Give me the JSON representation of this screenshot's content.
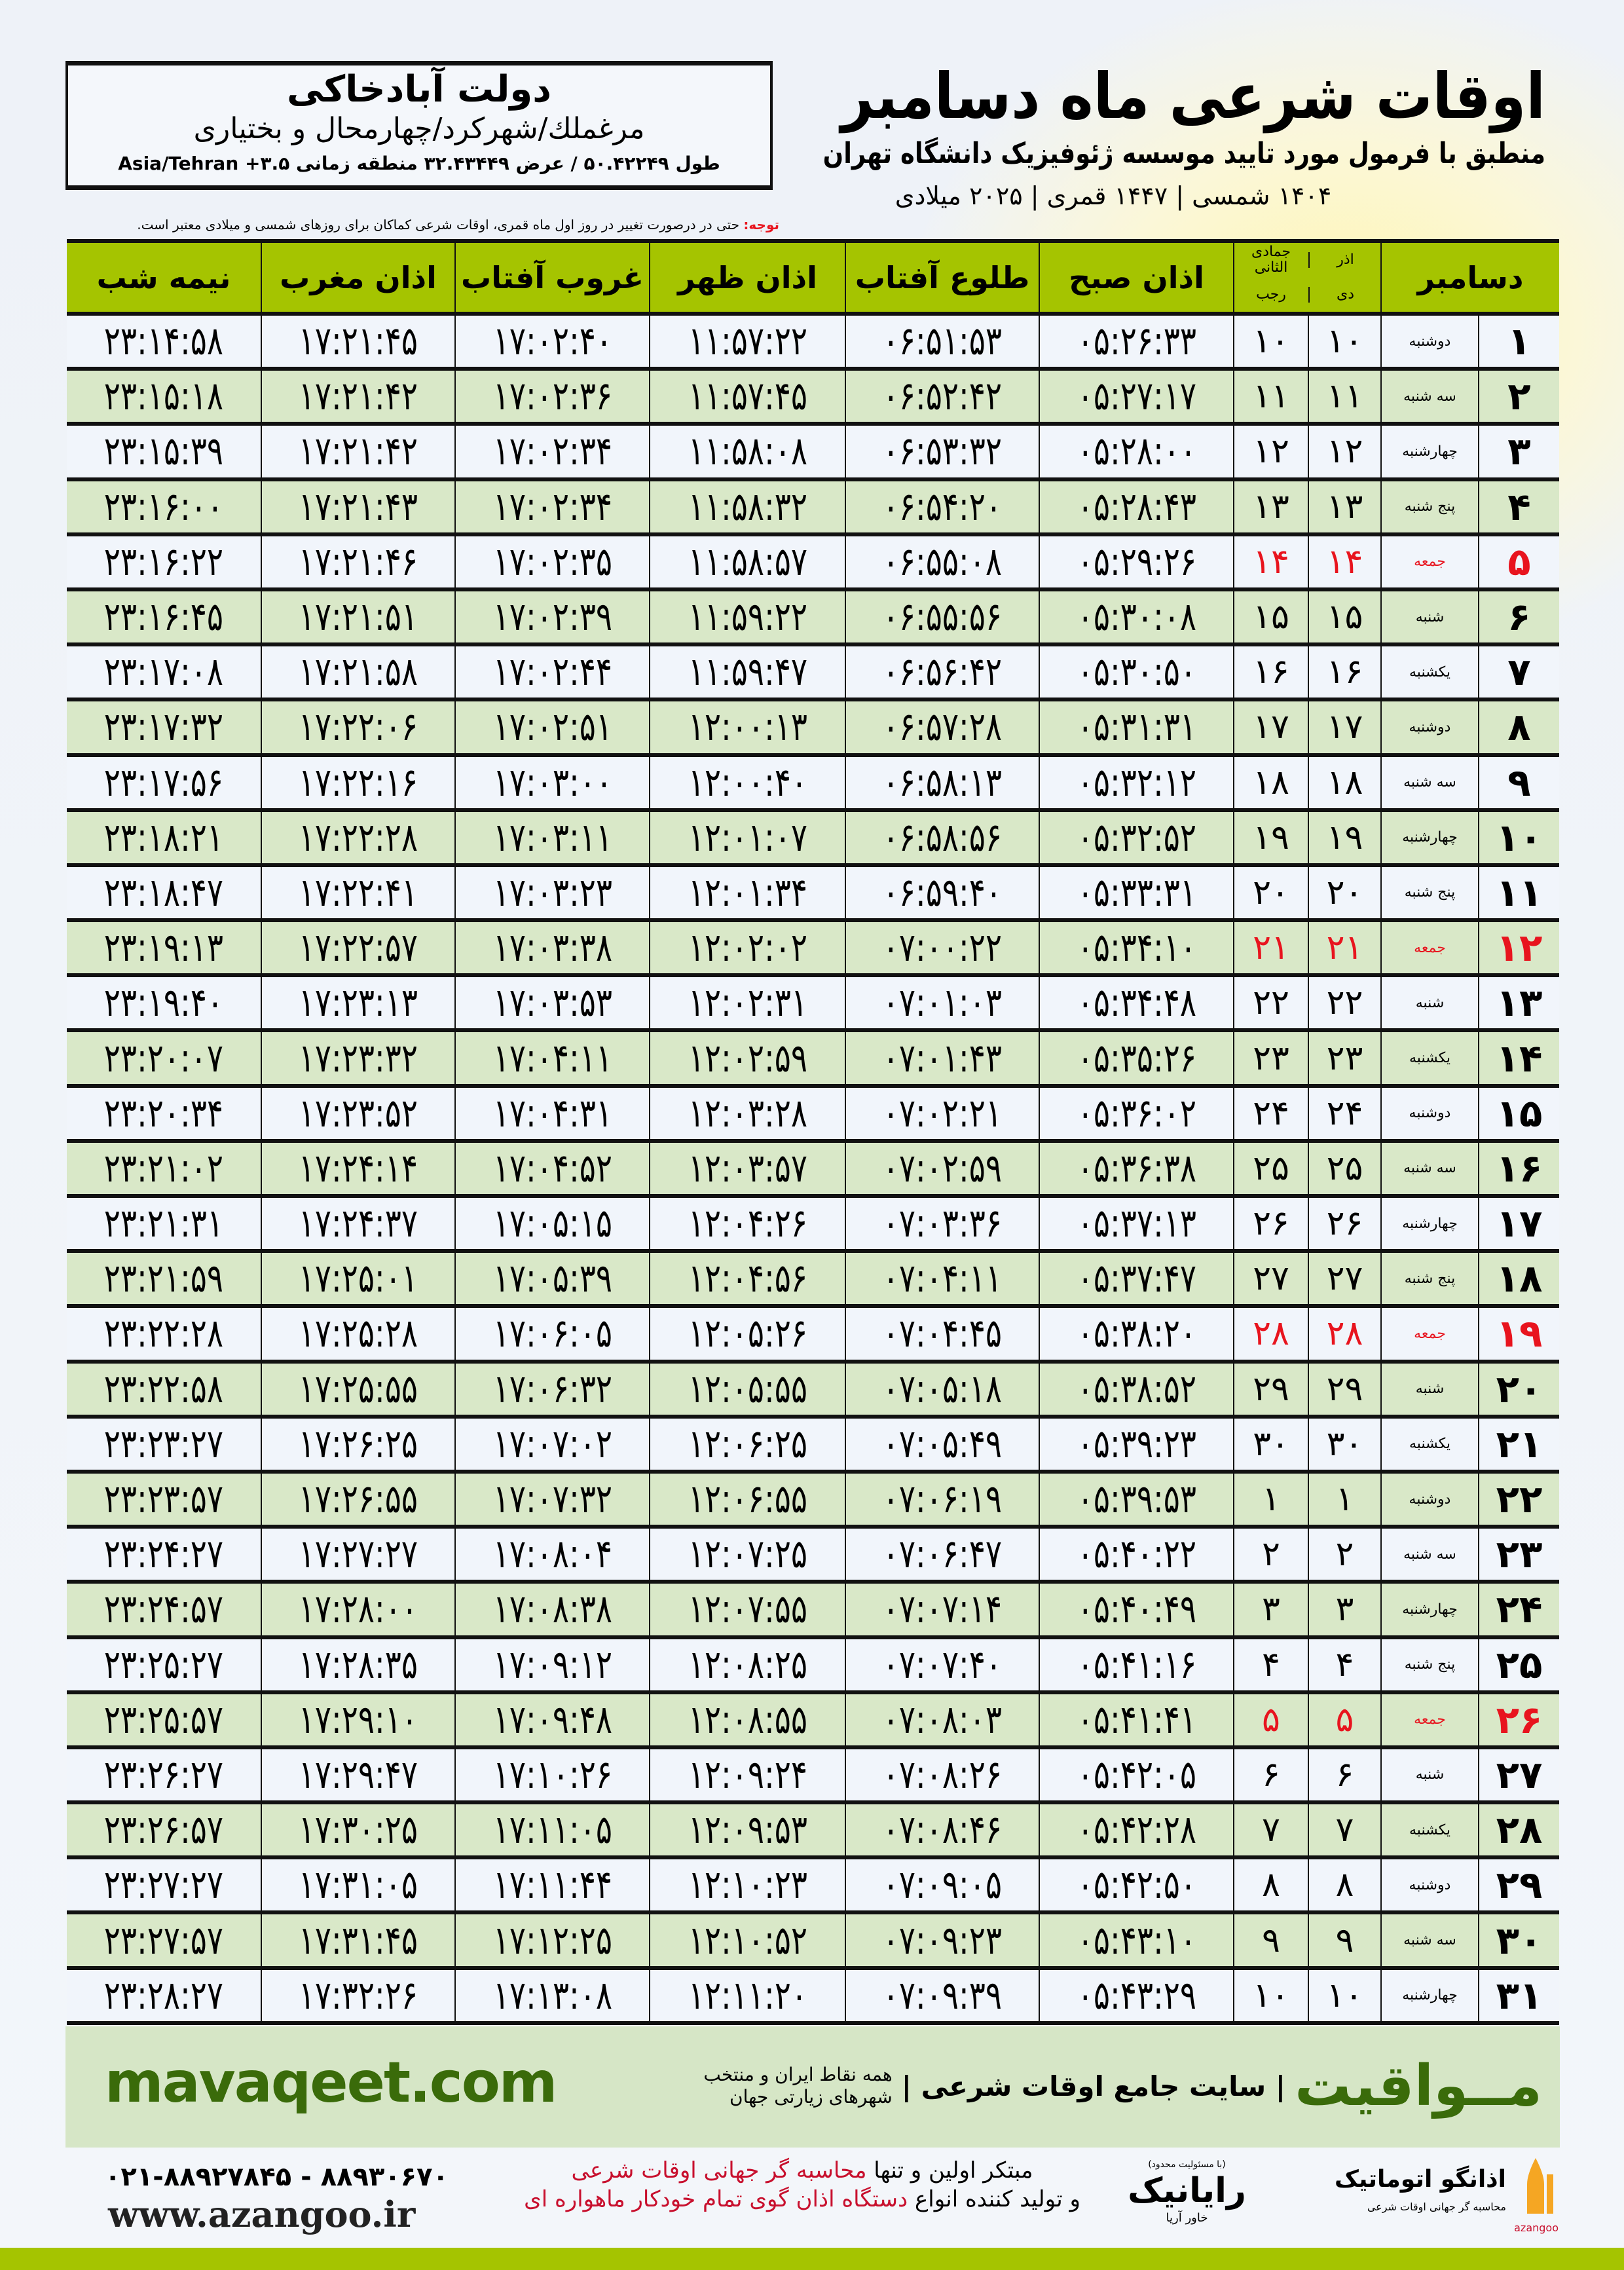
{
  "location": {
    "name": "دولت آبادخاکی",
    "region": "مرغملك/شهركرد/چهارمحال و بختیاری",
    "coords": "طول ۵۰.۴۲۲۴۹ / عرض ۳۲.۴۳۴۴۹ منطقه زمانی ۳.۵+ Asia/Tehran"
  },
  "header": {
    "title": "اوقات شرعی ماه دسامبر",
    "subtitle": "منطبق با فرمول مورد تایید موسسه ژئوفیزیک دانشگاه تهران",
    "dates": "۱۴۰۴ شمسی | ۱۴۴۷ قمری | ۲۰۲۵ میلادی"
  },
  "note": {
    "label": "توجه:",
    "text": " حتی در درصورت تغییر در روز اول ماه قمری، اوقات شرعی کماکان برای روزهای شمسی و میلادی معتبر است."
  },
  "columns": {
    "day": "دسامبر",
    "solar_top": "آذر",
    "solar_bottom": "دی",
    "lunar_top": "جمادی الثانی",
    "lunar_bottom": "رجب",
    "fajr": "اذان صبح",
    "sunrise": "طلوع آفتاب",
    "dhuhr": "اذان ظهر",
    "sunset": "غروب آفتاب",
    "maghrib": "اذان مغرب",
    "midnight": "نیمه شب"
  },
  "colors": {
    "header_green": "#a5c400",
    "row_green": "#d9e8c8",
    "friday_red": "#e8141e",
    "brand_green": "#3a6b0a",
    "footer_band": "#d6e6c6"
  },
  "rows": [
    {
      "day": "۱",
      "weekday": "دوشنبه",
      "solar": "۱۰",
      "lunar": "۱۰",
      "fajr": "۰۵:۲۶:۳۳",
      "sunrise": "۰۶:۵۱:۵۳",
      "dhuhr": "۱۱:۵۷:۲۲",
      "sunset": "۱۷:۰۲:۴۰",
      "maghrib": "۱۷:۲۱:۴۵",
      "midnight": "۲۳:۱۴:۵۸",
      "friday": false
    },
    {
      "day": "۲",
      "weekday": "سه شنبه",
      "solar": "۱۱",
      "lunar": "۱۱",
      "fajr": "۰۵:۲۷:۱۷",
      "sunrise": "۰۶:۵۲:۴۲",
      "dhuhr": "۱۱:۵۷:۴۵",
      "sunset": "۱۷:۰۲:۳۶",
      "maghrib": "۱۷:۲۱:۴۲",
      "midnight": "۲۳:۱۵:۱۸",
      "friday": false
    },
    {
      "day": "۳",
      "weekday": "چهارشنبه",
      "solar": "۱۲",
      "lunar": "۱۲",
      "fajr": "۰۵:۲۸:۰۰",
      "sunrise": "۰۶:۵۳:۳۲",
      "dhuhr": "۱۱:۵۸:۰۸",
      "sunset": "۱۷:۰۲:۳۴",
      "maghrib": "۱۷:۲۱:۴۲",
      "midnight": "۲۳:۱۵:۳۹",
      "friday": false
    },
    {
      "day": "۴",
      "weekday": "پنج شنبه",
      "solar": "۱۳",
      "lunar": "۱۳",
      "fajr": "۰۵:۲۸:۴۳",
      "sunrise": "۰۶:۵۴:۲۰",
      "dhuhr": "۱۱:۵۸:۳۲",
      "sunset": "۱۷:۰۲:۳۴",
      "maghrib": "۱۷:۲۱:۴۳",
      "midnight": "۲۳:۱۶:۰۰",
      "friday": false
    },
    {
      "day": "۵",
      "weekday": "جمعه",
      "solar": "۱۴",
      "lunar": "۱۴",
      "fajr": "۰۵:۲۹:۲۶",
      "sunrise": "۰۶:۵۵:۰۸",
      "dhuhr": "۱۱:۵۸:۵۷",
      "sunset": "۱۷:۰۲:۳۵",
      "maghrib": "۱۷:۲۱:۴۶",
      "midnight": "۲۳:۱۶:۲۲",
      "friday": true
    },
    {
      "day": "۶",
      "weekday": "شنبه",
      "solar": "۱۵",
      "lunar": "۱۵",
      "fajr": "۰۵:۳۰:۰۸",
      "sunrise": "۰۶:۵۵:۵۶",
      "dhuhr": "۱۱:۵۹:۲۲",
      "sunset": "۱۷:۰۲:۳۹",
      "maghrib": "۱۷:۲۱:۵۱",
      "midnight": "۲۳:۱۶:۴۵",
      "friday": false
    },
    {
      "day": "۷",
      "weekday": "یکشنبه",
      "solar": "۱۶",
      "lunar": "۱۶",
      "fajr": "۰۵:۳۰:۵۰",
      "sunrise": "۰۶:۵۶:۴۲",
      "dhuhr": "۱۱:۵۹:۴۷",
      "sunset": "۱۷:۰۲:۴۴",
      "maghrib": "۱۷:۲۱:۵۸",
      "midnight": "۲۳:۱۷:۰۸",
      "friday": false
    },
    {
      "day": "۸",
      "weekday": "دوشنبه",
      "solar": "۱۷",
      "lunar": "۱۷",
      "fajr": "۰۵:۳۱:۳۱",
      "sunrise": "۰۶:۵۷:۲۸",
      "dhuhr": "۱۲:۰۰:۱۳",
      "sunset": "۱۷:۰۲:۵۱",
      "maghrib": "۱۷:۲۲:۰۶",
      "midnight": "۲۳:۱۷:۳۲",
      "friday": false
    },
    {
      "day": "۹",
      "weekday": "سه شنبه",
      "solar": "۱۸",
      "lunar": "۱۸",
      "fajr": "۰۵:۳۲:۱۲",
      "sunrise": "۰۶:۵۸:۱۳",
      "dhuhr": "۱۲:۰۰:۴۰",
      "sunset": "۱۷:۰۳:۰۰",
      "maghrib": "۱۷:۲۲:۱۶",
      "midnight": "۲۳:۱۷:۵۶",
      "friday": false
    },
    {
      "day": "۱۰",
      "weekday": "چهارشنبه",
      "solar": "۱۹",
      "lunar": "۱۹",
      "fajr": "۰۵:۳۲:۵۲",
      "sunrise": "۰۶:۵۸:۵۶",
      "dhuhr": "۱۲:۰۱:۰۷",
      "sunset": "۱۷:۰۳:۱۱",
      "maghrib": "۱۷:۲۲:۲۸",
      "midnight": "۲۳:۱۸:۲۱",
      "friday": false
    },
    {
      "day": "۱۱",
      "weekday": "پنج شنبه",
      "solar": "۲۰",
      "lunar": "۲۰",
      "fajr": "۰۵:۳۳:۳۱",
      "sunrise": "۰۶:۵۹:۴۰",
      "dhuhr": "۱۲:۰۱:۳۴",
      "sunset": "۱۷:۰۳:۲۳",
      "maghrib": "۱۷:۲۲:۴۱",
      "midnight": "۲۳:۱۸:۴۷",
      "friday": false
    },
    {
      "day": "۱۲",
      "weekday": "جمعه",
      "solar": "۲۱",
      "lunar": "۲۱",
      "fajr": "۰۵:۳۴:۱۰",
      "sunrise": "۰۷:۰۰:۲۲",
      "dhuhr": "۱۲:۰۲:۰۲",
      "sunset": "۱۷:۰۳:۳۸",
      "maghrib": "۱۷:۲۲:۵۷",
      "midnight": "۲۳:۱۹:۱۳",
      "friday": true
    },
    {
      "day": "۱۳",
      "weekday": "شنبه",
      "solar": "۲۲",
      "lunar": "۲۲",
      "fajr": "۰۵:۳۴:۴۸",
      "sunrise": "۰۷:۰۱:۰۳",
      "dhuhr": "۱۲:۰۲:۳۱",
      "sunset": "۱۷:۰۳:۵۳",
      "maghrib": "۱۷:۲۳:۱۳",
      "midnight": "۲۳:۱۹:۴۰",
      "friday": false
    },
    {
      "day": "۱۴",
      "weekday": "یکشنبه",
      "solar": "۲۳",
      "lunar": "۲۳",
      "fajr": "۰۵:۳۵:۲۶",
      "sunrise": "۰۷:۰۱:۴۳",
      "dhuhr": "۱۲:۰۲:۵۹",
      "sunset": "۱۷:۰۴:۱۱",
      "maghrib": "۱۷:۲۳:۳۲",
      "midnight": "۲۳:۲۰:۰۷",
      "friday": false
    },
    {
      "day": "۱۵",
      "weekday": "دوشنبه",
      "solar": "۲۴",
      "lunar": "۲۴",
      "fajr": "۰۵:۳۶:۰۲",
      "sunrise": "۰۷:۰۲:۲۱",
      "dhuhr": "۱۲:۰۳:۲۸",
      "sunset": "۱۷:۰۴:۳۱",
      "maghrib": "۱۷:۲۳:۵۲",
      "midnight": "۲۳:۲۰:۳۴",
      "friday": false
    },
    {
      "day": "۱۶",
      "weekday": "سه شنبه",
      "solar": "۲۵",
      "lunar": "۲۵",
      "fajr": "۰۵:۳۶:۳۸",
      "sunrise": "۰۷:۰۲:۵۹",
      "dhuhr": "۱۲:۰۳:۵۷",
      "sunset": "۱۷:۰۴:۵۲",
      "maghrib": "۱۷:۲۴:۱۴",
      "midnight": "۲۳:۲۱:۰۲",
      "friday": false
    },
    {
      "day": "۱۷",
      "weekday": "چهارشنبه",
      "solar": "۲۶",
      "lunar": "۲۶",
      "fajr": "۰۵:۳۷:۱۳",
      "sunrise": "۰۷:۰۳:۳۶",
      "dhuhr": "۱۲:۰۴:۲۶",
      "sunset": "۱۷:۰۵:۱۵",
      "maghrib": "۱۷:۲۴:۳۷",
      "midnight": "۲۳:۲۱:۳۱",
      "friday": false
    },
    {
      "day": "۱۸",
      "weekday": "پنج شنبه",
      "solar": "۲۷",
      "lunar": "۲۷",
      "fajr": "۰۵:۳۷:۴۷",
      "sunrise": "۰۷:۰۴:۱۱",
      "dhuhr": "۱۲:۰۴:۵۶",
      "sunset": "۱۷:۰۵:۳۹",
      "maghrib": "۱۷:۲۵:۰۱",
      "midnight": "۲۳:۲۱:۵۹",
      "friday": false
    },
    {
      "day": "۱۹",
      "weekday": "جمعه",
      "solar": "۲۸",
      "lunar": "۲۸",
      "fajr": "۰۵:۳۸:۲۰",
      "sunrise": "۰۷:۰۴:۴۵",
      "dhuhr": "۱۲:۰۵:۲۶",
      "sunset": "۱۷:۰۶:۰۵",
      "maghrib": "۱۷:۲۵:۲۸",
      "midnight": "۲۳:۲۲:۲۸",
      "friday": true
    },
    {
      "day": "۲۰",
      "weekday": "شنبه",
      "solar": "۲۹",
      "lunar": "۲۹",
      "fajr": "۰۵:۳۸:۵۲",
      "sunrise": "۰۷:۰۵:۱۸",
      "dhuhr": "۱۲:۰۵:۵۵",
      "sunset": "۱۷:۰۶:۳۲",
      "maghrib": "۱۷:۲۵:۵۵",
      "midnight": "۲۳:۲۲:۵۸",
      "friday": false
    },
    {
      "day": "۲۱",
      "weekday": "یکشنبه",
      "solar": "۳۰",
      "lunar": "۳۰",
      "fajr": "۰۵:۳۹:۲۳",
      "sunrise": "۰۷:۰۵:۴۹",
      "dhuhr": "۱۲:۰۶:۲۵",
      "sunset": "۱۷:۰۷:۰۲",
      "maghrib": "۱۷:۲۶:۲۵",
      "midnight": "۲۳:۲۳:۲۷",
      "friday": false
    },
    {
      "day": "۲۲",
      "weekday": "دوشنبه",
      "solar": "۱",
      "lunar": "۱",
      "fajr": "۰۵:۳۹:۵۳",
      "sunrise": "۰۷:۰۶:۱۹",
      "dhuhr": "۱۲:۰۶:۵۵",
      "sunset": "۱۷:۰۷:۳۲",
      "maghrib": "۱۷:۲۶:۵۵",
      "midnight": "۲۳:۲۳:۵۷",
      "friday": false
    },
    {
      "day": "۲۳",
      "weekday": "سه شنبه",
      "solar": "۲",
      "lunar": "۲",
      "fajr": "۰۵:۴۰:۲۲",
      "sunrise": "۰۷:۰۶:۴۷",
      "dhuhr": "۱۲:۰۷:۲۵",
      "sunset": "۱۷:۰۸:۰۴",
      "maghrib": "۱۷:۲۷:۲۷",
      "midnight": "۲۳:۲۴:۲۷",
      "friday": false
    },
    {
      "day": "۲۴",
      "weekday": "چهارشنبه",
      "solar": "۳",
      "lunar": "۳",
      "fajr": "۰۵:۴۰:۴۹",
      "sunrise": "۰۷:۰۷:۱۴",
      "dhuhr": "۱۲:۰۷:۵۵",
      "sunset": "۱۷:۰۸:۳۸",
      "maghrib": "۱۷:۲۸:۰۰",
      "midnight": "۲۳:۲۴:۵۷",
      "friday": false
    },
    {
      "day": "۲۵",
      "weekday": "پنج شنبه",
      "solar": "۴",
      "lunar": "۴",
      "fajr": "۰۵:۴۱:۱۶",
      "sunrise": "۰۷:۰۷:۴۰",
      "dhuhr": "۱۲:۰۸:۲۵",
      "sunset": "۱۷:۰۹:۱۲",
      "maghrib": "۱۷:۲۸:۳۵",
      "midnight": "۲۳:۲۵:۲۷",
      "friday": false
    },
    {
      "day": "۲۶",
      "weekday": "جمعه",
      "solar": "۵",
      "lunar": "۵",
      "fajr": "۰۵:۴۱:۴۱",
      "sunrise": "۰۷:۰۸:۰۳",
      "dhuhr": "۱۲:۰۸:۵۵",
      "sunset": "۱۷:۰۹:۴۸",
      "maghrib": "۱۷:۲۹:۱۰",
      "midnight": "۲۳:۲۵:۵۷",
      "friday": true
    },
    {
      "day": "۲۷",
      "weekday": "شنبه",
      "solar": "۶",
      "lunar": "۶",
      "fajr": "۰۵:۴۲:۰۵",
      "sunrise": "۰۷:۰۸:۲۶",
      "dhuhr": "۱۲:۰۹:۲۴",
      "sunset": "۱۷:۱۰:۲۶",
      "maghrib": "۱۷:۲۹:۴۷",
      "midnight": "۲۳:۲۶:۲۷",
      "friday": false
    },
    {
      "day": "۲۸",
      "weekday": "یکشنبه",
      "solar": "۷",
      "lunar": "۷",
      "fajr": "۰۵:۴۲:۲۸",
      "sunrise": "۰۷:۰۸:۴۶",
      "dhuhr": "۱۲:۰۹:۵۳",
      "sunset": "۱۷:۱۱:۰۵",
      "maghrib": "۱۷:۳۰:۲۵",
      "midnight": "۲۳:۲۶:۵۷",
      "friday": false
    },
    {
      "day": "۲۹",
      "weekday": "دوشنبه",
      "solar": "۸",
      "lunar": "۸",
      "fajr": "۰۵:۴۲:۵۰",
      "sunrise": "۰۷:۰۹:۰۵",
      "dhuhr": "۱۲:۱۰:۲۳",
      "sunset": "۱۷:۱۱:۴۴",
      "maghrib": "۱۷:۳۱:۰۵",
      "midnight": "۲۳:۲۷:۲۷",
      "friday": false
    },
    {
      "day": "۳۰",
      "weekday": "سه شنبه",
      "solar": "۹",
      "lunar": "۹",
      "fajr": "۰۵:۴۳:۱۰",
      "sunrise": "۰۷:۰۹:۲۳",
      "dhuhr": "۱۲:۱۰:۵۲",
      "sunset": "۱۷:۱۲:۲۵",
      "maghrib": "۱۷:۳۱:۴۵",
      "midnight": "۲۳:۲۷:۵۷",
      "friday": false
    },
    {
      "day": "۳۱",
      "weekday": "چهارشنبه",
      "solar": "۱۰",
      "lunar": "۱۰",
      "fajr": "۰۵:۴۳:۲۹",
      "sunrise": "۰۷:۰۹:۳۹",
      "dhuhr": "۱۲:۱۱:۲۰",
      "sunset": "۱۷:۱۳:۰۸",
      "maghrib": "۱۷:۳۲:۲۶",
      "midnight": "۲۳:۲۸:۲۷",
      "friday": false
    }
  ],
  "footer": {
    "brand_logo": "مــواقیت",
    "brand_tagline": "سایت جامع اوقات شرعی",
    "brand_sub": "همه نقاط ایران و منتخب شهرهای زیارتی جهان",
    "brand_url": "mavaqeet.com",
    "phone": "۰۲۱-۸۸۹۲۷۸۴۵ - ۸۸۹۳۰۶۷۰",
    "website": "www.azangoo.ir",
    "promo_1a": "مبتکر اولین و تنها ",
    "promo_1b": "محاسبه گر جهانی اوقات شرعی",
    "promo_2a": "و تولید کننده انواع ",
    "promo_2b": "دستگاه اذان گوی تمام خودکار ماهواره ای",
    "rayanik_logo": "رایانیک",
    "rayanik_small": "خاور آریا",
    "rayanik_note": "(با مسئولیت محدود)",
    "azangoo_logo": "اذانگو اتوماتیک",
    "azangoo_sub": "محاسبه گر جهانی اوقات شرعی",
    "azangoo_en": "azangoo"
  }
}
